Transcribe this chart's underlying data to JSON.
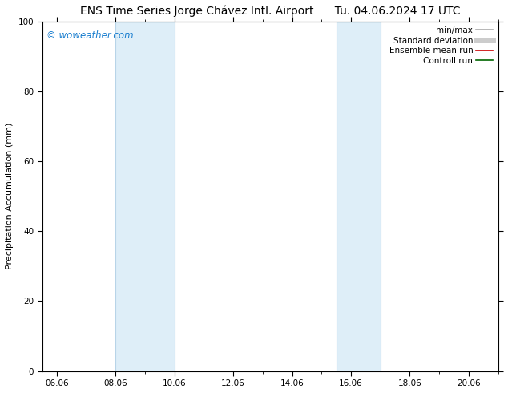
{
  "title": "ENS Time Series Jorge Chávez Intl. Airport      Tu. 04.06.2024 17 UTC",
  "ylabel": "Precipitation Accumulation (mm)",
  "watermark": "© woweather.com",
  "watermark_color": "#1a7ecf",
  "xlim_start": 5.5,
  "xlim_end": 21.0,
  "ylim": [
    0,
    100
  ],
  "yticks": [
    0,
    20,
    40,
    60,
    80,
    100
  ],
  "xtick_labels": [
    "06.06",
    "08.06",
    "10.06",
    "12.06",
    "14.06",
    "16.06",
    "18.06",
    "20.06"
  ],
  "xtick_positions": [
    6.0,
    8.0,
    10.0,
    12.0,
    14.0,
    16.0,
    18.0,
    20.0
  ],
  "shaded_bands": [
    {
      "x_start": 8.0,
      "x_end": 10.0
    },
    {
      "x_start": 15.5,
      "x_end": 17.0
    }
  ],
  "shade_color": "#deeef8",
  "shade_edge_color": "#b8d4e8",
  "background_color": "#ffffff",
  "legend_items": [
    {
      "label": "min/max",
      "color": "#aaaaaa",
      "lw": 1.2,
      "style": "solid"
    },
    {
      "label": "Standard deviation",
      "color": "#cccccc",
      "lw": 5,
      "style": "solid"
    },
    {
      "label": "Ensemble mean run",
      "color": "#cc0000",
      "lw": 1.2,
      "style": "solid"
    },
    {
      "label": "Controll run",
      "color": "#006600",
      "lw": 1.2,
      "style": "solid"
    }
  ],
  "title_fontsize": 10,
  "axis_label_fontsize": 8,
  "tick_fontsize": 7.5,
  "legend_fontsize": 7.5,
  "watermark_fontsize": 8.5
}
